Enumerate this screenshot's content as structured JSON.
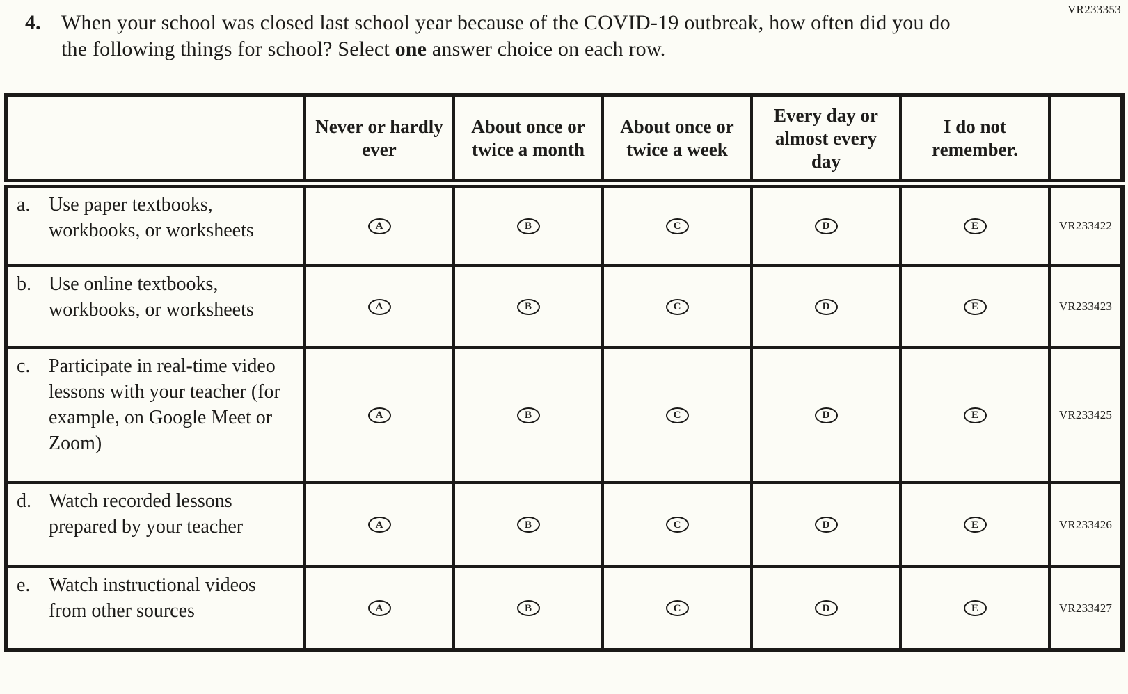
{
  "theme": {
    "ink": "#1d1c1a",
    "paper": "#fcfcf6",
    "line": "#1b1a18"
  },
  "page": {
    "corner_code": "VR233353"
  },
  "question": {
    "number": "4.",
    "text_before_bold": "When your school was closed last school year because of the COVID-19 outbreak, how often did you do the following things for school? Select ",
    "bold_word": "one",
    "text_after_bold": " answer choice on each row."
  },
  "table": {
    "column_headers": [
      "Never or hardly ever",
      "About once or twice a month",
      "About once or twice a week",
      "Every day or almost every day",
      "I do not remember."
    ],
    "choice_letters": [
      "A",
      "B",
      "C",
      "D",
      "E"
    ],
    "rows": [
      {
        "letter": "a.",
        "text": "Use paper textbooks, workbooks, or worksheets",
        "code": "VR233422"
      },
      {
        "letter": "b.",
        "text": "Use online textbooks, workbooks, or worksheets",
        "code": "VR233423"
      },
      {
        "letter": "c.",
        "text": "Participate in real-time video lessons with your teacher (for example, on Google Meet or Zoom)",
        "code": "VR233425"
      },
      {
        "letter": "d.",
        "text": "Watch recorded lessons prepared by your teacher",
        "code": "VR233426"
      },
      {
        "letter": "e.",
        "text": "Watch instructional videos from other sources",
        "code": "VR233427"
      }
    ]
  }
}
